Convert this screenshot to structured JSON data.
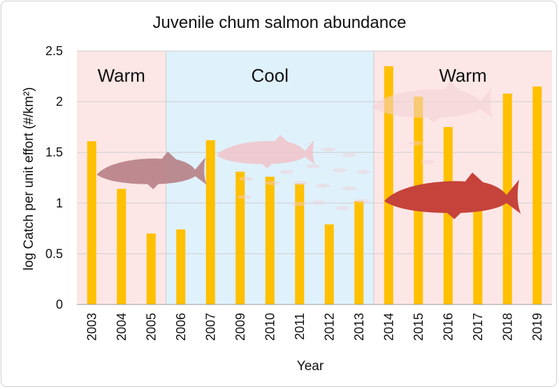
{
  "chart_data": {
    "type": "bar",
    "title": "Juvenile chum salmon abundance",
    "xlabel": "Year",
    "ylabel": "log Catch per unit effort (#/km²)",
    "categories": [
      "2003",
      "2004",
      "2005",
      "2006",
      "2007",
      "2009",
      "2010",
      "2011",
      "2012",
      "2013",
      "2014",
      "2015",
      "2016",
      "2017",
      "2018",
      "2019"
    ],
    "values": [
      1.61,
      1.14,
      0.7,
      0.74,
      1.62,
      1.31,
      1.26,
      1.19,
      0.79,
      1.02,
      2.35,
      2.05,
      1.75,
      1.13,
      2.08,
      2.15
    ],
    "ylim": [
      0,
      2.5
    ],
    "yticks": [
      "0",
      "0.5",
      "1",
      "1.5",
      "2",
      "2.5"
    ],
    "grid": true,
    "bar_color": "#ffc000",
    "periods": [
      {
        "label": "Warm",
        "start": "2003",
        "end": "2005",
        "color": "#fde6e6"
      },
      {
        "label": "Cool",
        "start": "2006",
        "end": "2013",
        "color": "#dff1fb"
      },
      {
        "label": "Warm",
        "start": "2014",
        "end": "2019",
        "color": "#fde6e6"
      }
    ],
    "decorations": [
      "salmon-icon",
      "salmon-icon",
      "salmon-icon",
      "salmon-icon",
      "fish-school-icon"
    ]
  }
}
